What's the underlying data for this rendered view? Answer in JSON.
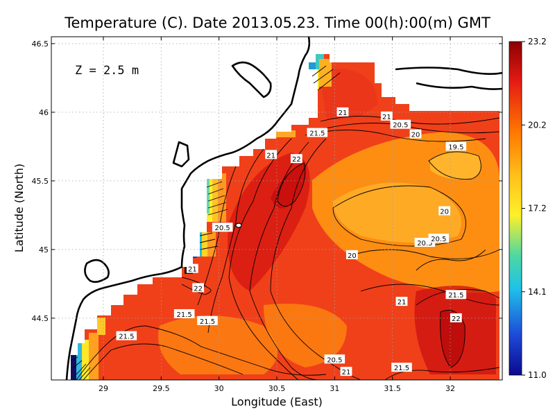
{
  "chart_data": {
    "type": "heatmap",
    "title": "Temperature (C). Date 2013.05.23. Time 00(h):00(m) GMT",
    "xlabel": "Longitude (East)",
    "ylabel": "Latitude (North)",
    "annotation": "Z = 2.5 m",
    "xlim": [
      28.55,
      32.45
    ],
    "ylim": [
      44.05,
      46.55
    ],
    "x_ticks": [
      "29",
      "29.5",
      "30",
      "30.5",
      "31",
      "31.5",
      "32"
    ],
    "y_ticks": [
      "44.5",
      "45",
      "45.5",
      "46",
      "46.5"
    ],
    "grid": true,
    "colorbar": {
      "ticks": [
        "23.2",
        "20.2",
        "17.2",
        "14.1",
        "11.0"
      ],
      "range": [
        11.0,
        23.2
      ],
      "colors": [
        "#8b0000",
        "#e51b14",
        "#ff7700",
        "#ffbf1a",
        "#fff02a",
        "#4fd8a0",
        "#1ec2e8",
        "#1e4ad8",
        "#0a0a8e"
      ]
    },
    "contour_labels": [
      {
        "text": "21",
        "lon": 31.07,
        "lat": 46.0
      },
      {
        "text": "21",
        "lon": 31.45,
        "lat": 45.97
      },
      {
        "text": "20.5",
        "lon": 31.57,
        "lat": 45.91
      },
      {
        "text": "20",
        "lon": 31.7,
        "lat": 45.84
      },
      {
        "text": "19.5",
        "lon": 32.05,
        "lat": 45.75
      },
      {
        "text": "21.5",
        "lon": 30.85,
        "lat": 45.85
      },
      {
        "text": "21",
        "lon": 30.45,
        "lat": 45.69
      },
      {
        "text": "22",
        "lon": 30.67,
        "lat": 45.66
      },
      {
        "text": "20",
        "lon": 31.95,
        "lat": 45.28
      },
      {
        "text": "20.5",
        "lon": 30.03,
        "lat": 45.16
      },
      {
        "text": "20.5",
        "lon": 31.78,
        "lat": 45.05
      },
      {
        "text": "20.5",
        "lon": 31.9,
        "lat": 45.08
      },
      {
        "text": "20",
        "lon": 31.15,
        "lat": 44.96
      },
      {
        "text": "21",
        "lon": 29.77,
        "lat": 44.86
      },
      {
        "text": "22",
        "lon": 29.82,
        "lat": 44.72
      },
      {
        "text": "21",
        "lon": 31.58,
        "lat": 44.62
      },
      {
        "text": "21.5",
        "lon": 32.05,
        "lat": 44.67
      },
      {
        "text": "21.5",
        "lon": 29.7,
        "lat": 44.53
      },
      {
        "text": "21.5",
        "lon": 29.9,
        "lat": 44.48
      },
      {
        "text": "22",
        "lon": 32.05,
        "lat": 44.5
      },
      {
        "text": "21.5",
        "lon": 29.2,
        "lat": 44.37
      },
      {
        "text": "20.5",
        "lon": 31.0,
        "lat": 44.2
      },
      {
        "text": "21",
        "lon": 31.1,
        "lat": 44.11
      },
      {
        "text": "21.5",
        "lon": 31.58,
        "lat": 44.14
      }
    ]
  }
}
